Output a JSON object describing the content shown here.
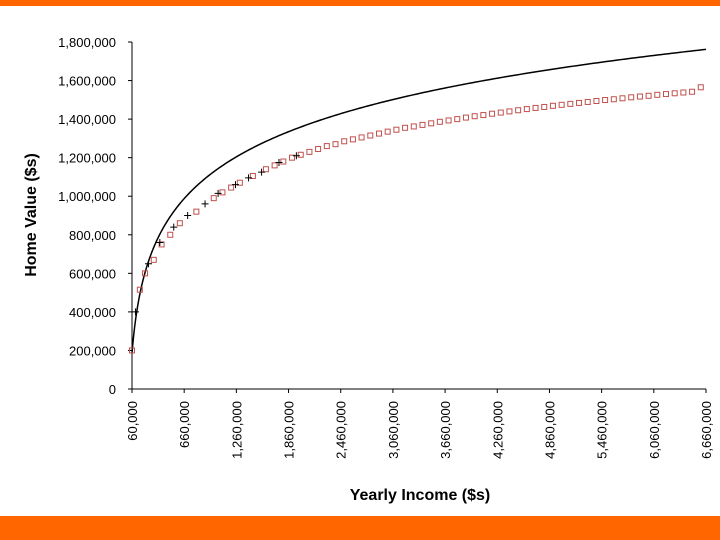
{
  "colors": {
    "accent_bar": "#ff6600",
    "fitted_line": "#000000",
    "sample_marker": "#c0504d",
    "cross_marker": "#000000"
  },
  "chart_data": {
    "type": "scatter",
    "title": "",
    "xlabel": "Yearly Income ($s)",
    "ylabel": "Home Value ($s)",
    "xlim": [
      60000,
      6660000
    ],
    "ylim": [
      0,
      1800000
    ],
    "x_ticks": [
      60000,
      660000,
      1260000,
      1860000,
      2460000,
      3060000,
      3660000,
      4260000,
      4860000,
      5460000,
      6060000,
      6660000
    ],
    "x_tick_labels": [
      "60,000",
      "660,000",
      "1,260,000",
      "1,860,000",
      "2,460,000",
      "3,060,000",
      "3,660,000",
      "4,260,000",
      "4,860,000",
      "5,460,000",
      "6,060,000",
      "6,660,000"
    ],
    "y_ticks": [
      0,
      200000,
      400000,
      600000,
      800000,
      1000000,
      1200000,
      1400000,
      1600000,
      1800000
    ],
    "y_tick_labels": [
      "0",
      "200,000",
      "400,000",
      "600,000",
      "800,000",
      "1,000,000",
      "1,200,000",
      "1,400,000",
      "1,600,000",
      "1,800,000"
    ],
    "grid": false,
    "legend": "none",
    "series": [
      {
        "marker": "square",
        "x": [
          60000,
          150000,
          210000,
          310000,
          400000,
          500000,
          610000,
          800000,
          1000000,
          1100000,
          1200000,
          1300000,
          1450000,
          1600000,
          1700000,
          1800000,
          1900000,
          2000000,
          2100000,
          2200000,
          2300000,
          2400000,
          2500000,
          2600000,
          2700000,
          2800000,
          2900000,
          3000000,
          3100000,
          3200000,
          3300000,
          3400000,
          3500000,
          3600000,
          3700000,
          3800000,
          3900000,
          4000000,
          4100000,
          4200000,
          4300000,
          4400000,
          4500000,
          4600000,
          4700000,
          4800000,
          4900000,
          5000000,
          5100000,
          5200000,
          5300000,
          5400000,
          5500000,
          5600000,
          5700000,
          5800000,
          5900000,
          6000000,
          6100000,
          6200000,
          6300000,
          6400000,
          6500000,
          6600000
        ],
        "y": [
          200000,
          515000,
          600000,
          670000,
          750000,
          800000,
          860000,
          920000,
          990000,
          1020000,
          1045000,
          1070000,
          1105000,
          1140000,
          1160000,
          1180000,
          1200000,
          1215000,
          1230000,
          1245000,
          1260000,
          1270000,
          1285000,
          1295000,
          1305000,
          1315000,
          1325000,
          1335000,
          1345000,
          1355000,
          1362000,
          1370000,
          1378000,
          1386000,
          1393000,
          1400000,
          1408000,
          1415000,
          1421000,
          1428000,
          1434000,
          1440000,
          1446000,
          1452000,
          1458000,
          1463000,
          1469000,
          1474000,
          1479000,
          1484000,
          1489000,
          1494000,
          1499000,
          1503000,
          1508000,
          1513000,
          1517000,
          1521000,
          1526000,
          1530000,
          1534000,
          1538000,
          1542000,
          1565000
        ]
      },
      {
        "marker": "cross",
        "x": [
          100000,
          250000,
          380000,
          540000,
          700000,
          900000,
          1050000,
          1250000,
          1400000,
          1550000,
          1750000,
          1950000
        ],
        "y": [
          400000,
          650000,
          760000,
          840000,
          900000,
          960000,
          1015000,
          1060000,
          1095000,
          1125000,
          1175000,
          1210000
        ]
      }
    ],
    "fitted_curve": {
      "type": "logarithmic",
      "coefficient": 334900,
      "intercept": -3500000
    }
  }
}
